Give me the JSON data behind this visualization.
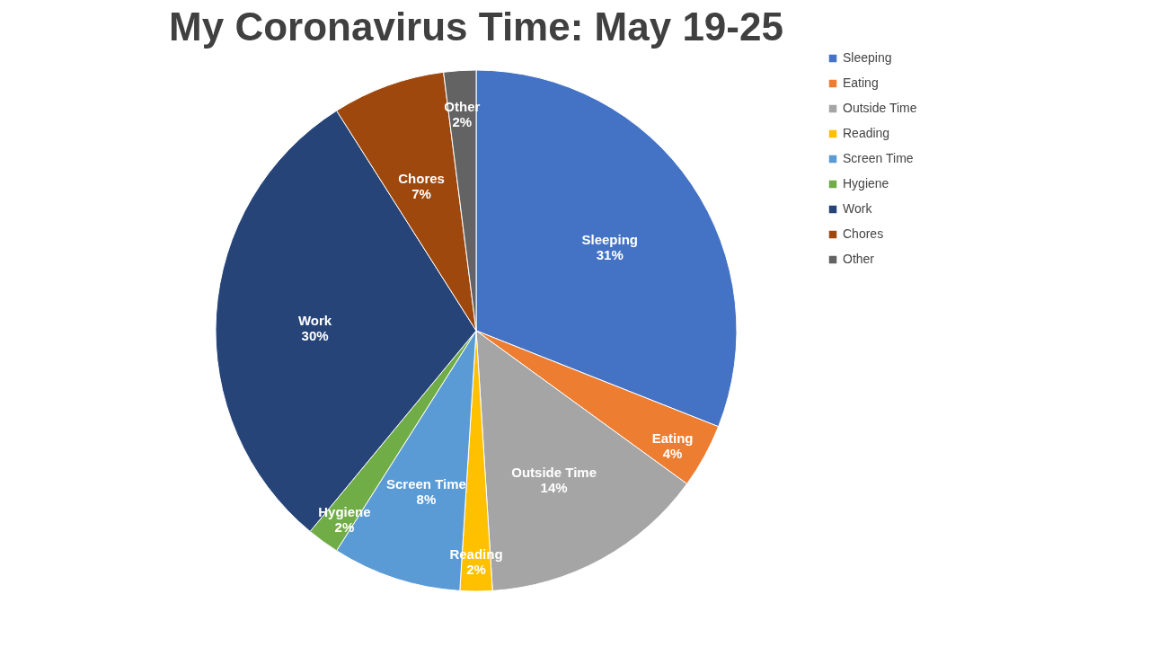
{
  "chart_data": {
    "type": "pie",
    "title": "My Coronavirus Time: May 19-25",
    "categories": [
      "Sleeping",
      "Eating",
      "Outside Time",
      "Reading",
      "Screen Time",
      "Hygiene",
      "Work",
      "Chores",
      "Other"
    ],
    "values": [
      31,
      4,
      14,
      2,
      8,
      2,
      30,
      7,
      2
    ],
    "value_labels": [
      "31%",
      "4%",
      "14%",
      "2%",
      "8%",
      "2%",
      "30%",
      "7%",
      "2%"
    ],
    "colors": [
      "#4472c4",
      "#ed7d31",
      "#a5a5a5",
      "#ffc000",
      "#5b9bd5",
      "#70ad47",
      "#264478",
      "#9e480e",
      "#636363"
    ],
    "legend": "right"
  }
}
